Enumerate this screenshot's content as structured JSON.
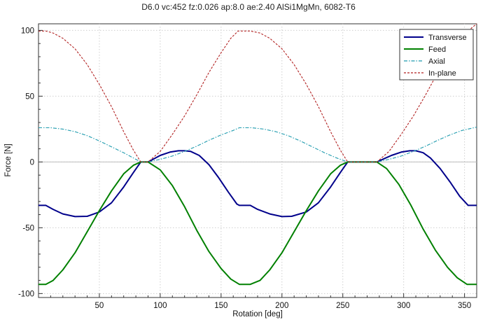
{
  "chart_data": {
    "type": "line",
    "title": "D6.0 vc:452 fz:0.026 ap:8.0 ae:2.40 AlSi1MgMn, 6082-T6",
    "xlabel": "Rotation [deg]",
    "ylabel": "Force [N]",
    "xlim": [
      0,
      360
    ],
    "ylim": [
      -103,
      105
    ],
    "xticks": [
      50,
      100,
      150,
      200,
      250,
      300,
      350
    ],
    "yticks": [
      -100,
      -50,
      0,
      50,
      100
    ],
    "grid": true,
    "legend_position": "top-right",
    "series": [
      {
        "name": "Transverse",
        "color": "#00008b",
        "style": "solid",
        "points": [
          [
            0,
            -33
          ],
          [
            6,
            -33
          ],
          [
            12,
            -36
          ],
          [
            20,
            -39.5
          ],
          [
            30,
            -41.5
          ],
          [
            40,
            -41.3
          ],
          [
            50,
            -38
          ],
          [
            60,
            -31
          ],
          [
            70,
            -19
          ],
          [
            78,
            -8
          ],
          [
            84,
            0
          ],
          [
            90,
            0
          ],
          [
            95,
            2.5
          ],
          [
            100,
            5
          ],
          [
            108,
            7.5
          ],
          [
            115,
            8.5
          ],
          [
            120,
            8.5
          ],
          [
            125,
            8
          ],
          [
            132,
            5
          ],
          [
            140,
            -2
          ],
          [
            148,
            -12
          ],
          [
            156,
            -23
          ],
          [
            163,
            -32
          ],
          [
            165,
            -33
          ],
          [
            174,
            -33
          ],
          [
            180,
            -36
          ],
          [
            190,
            -39.5
          ],
          [
            200,
            -41.5
          ],
          [
            208,
            -41.3
          ],
          [
            220,
            -38
          ],
          [
            230,
            -31
          ],
          [
            240,
            -19
          ],
          [
            248,
            -8
          ],
          [
            254,
            0
          ],
          [
            278,
            0
          ],
          [
            284,
            2.5
          ],
          [
            290,
            5
          ],
          [
            298,
            7.5
          ],
          [
            305,
            8.5
          ],
          [
            310,
            8.5
          ],
          [
            316,
            7
          ],
          [
            322,
            3
          ],
          [
            330,
            -5
          ],
          [
            338,
            -15
          ],
          [
            346,
            -26
          ],
          [
            353,
            -33
          ],
          [
            360,
            -33
          ]
        ]
      },
      {
        "name": "Feed",
        "color": "#008000",
        "style": "solid",
        "points": [
          [
            0,
            -93
          ],
          [
            6,
            -93
          ],
          [
            12,
            -90
          ],
          [
            20,
            -82
          ],
          [
            30,
            -69
          ],
          [
            40,
            -53
          ],
          [
            50,
            -37
          ],
          [
            60,
            -22
          ],
          [
            70,
            -9
          ],
          [
            78,
            -2.5
          ],
          [
            84,
            0
          ],
          [
            90,
            0
          ],
          [
            100,
            -6
          ],
          [
            110,
            -18
          ],
          [
            120,
            -34
          ],
          [
            130,
            -52
          ],
          [
            140,
            -68
          ],
          [
            150,
            -81
          ],
          [
            158,
            -89
          ],
          [
            165,
            -93
          ],
          [
            174,
            -93
          ],
          [
            182,
            -90
          ],
          [
            190,
            -82
          ],
          [
            200,
            -69
          ],
          [
            210,
            -53
          ],
          [
            220,
            -37
          ],
          [
            230,
            -22
          ],
          [
            240,
            -9
          ],
          [
            248,
            -2.5
          ],
          [
            254,
            0
          ],
          [
            278,
            0
          ],
          [
            286,
            -5
          ],
          [
            296,
            -17
          ],
          [
            306,
            -33
          ],
          [
            316,
            -51
          ],
          [
            326,
            -67
          ],
          [
            336,
            -80
          ],
          [
            344,
            -88
          ],
          [
            352,
            -93
          ],
          [
            360,
            -93
          ]
        ]
      },
      {
        "name": "Axial",
        "color": "#1e9bae",
        "style": "dashdot",
        "points": [
          [
            0,
            26
          ],
          [
            10,
            26
          ],
          [
            20,
            25
          ],
          [
            30,
            23
          ],
          [
            40,
            20
          ],
          [
            50,
            16
          ],
          [
            60,
            11.5
          ],
          [
            70,
            7
          ],
          [
            78,
            3
          ],
          [
            84,
            0
          ],
          [
            90,
            0
          ],
          [
            100,
            2
          ],
          [
            110,
            4.5
          ],
          [
            120,
            8
          ],
          [
            130,
            12
          ],
          [
            140,
            16.5
          ],
          [
            150,
            20.5
          ],
          [
            160,
            24
          ],
          [
            165,
            26
          ],
          [
            175,
            26
          ],
          [
            185,
            25
          ],
          [
            195,
            23
          ],
          [
            205,
            20
          ],
          [
            215,
            16
          ],
          [
            225,
            11.5
          ],
          [
            235,
            7
          ],
          [
            245,
            3
          ],
          [
            254,
            0
          ],
          [
            278,
            0
          ],
          [
            288,
            2
          ],
          [
            298,
            4.5
          ],
          [
            308,
            8
          ],
          [
            318,
            12
          ],
          [
            328,
            16.5
          ],
          [
            338,
            20.5
          ],
          [
            348,
            24
          ],
          [
            360,
            26.5
          ]
        ]
      },
      {
        "name": "In-plane",
        "color": "#b22222",
        "style": "dashed",
        "points": [
          [
            0,
            99.5
          ],
          [
            6,
            99.5
          ],
          [
            12,
            98
          ],
          [
            20,
            94
          ],
          [
            30,
            86
          ],
          [
            40,
            74
          ],
          [
            50,
            59
          ],
          [
            60,
            42
          ],
          [
            70,
            23
          ],
          [
            78,
            9
          ],
          [
            84,
            0
          ],
          [
            90,
            0
          ],
          [
            100,
            8
          ],
          [
            110,
            21
          ],
          [
            120,
            35
          ],
          [
            130,
            51
          ],
          [
            140,
            68
          ],
          [
            150,
            83
          ],
          [
            158,
            94
          ],
          [
            164,
            99.5
          ],
          [
            174,
            99.5
          ],
          [
            182,
            98
          ],
          [
            190,
            94
          ],
          [
            200,
            86
          ],
          [
            210,
            74
          ],
          [
            220,
            59
          ],
          [
            230,
            42
          ],
          [
            240,
            23
          ],
          [
            248,
            9
          ],
          [
            254,
            0
          ],
          [
            278,
            0
          ],
          [
            288,
            8
          ],
          [
            298,
            21
          ],
          [
            308,
            35
          ],
          [
            318,
            51
          ],
          [
            328,
            68
          ],
          [
            338,
            83
          ],
          [
            348,
            94
          ],
          [
            356,
            102
          ],
          [
            360,
            105
          ]
        ]
      }
    ]
  }
}
